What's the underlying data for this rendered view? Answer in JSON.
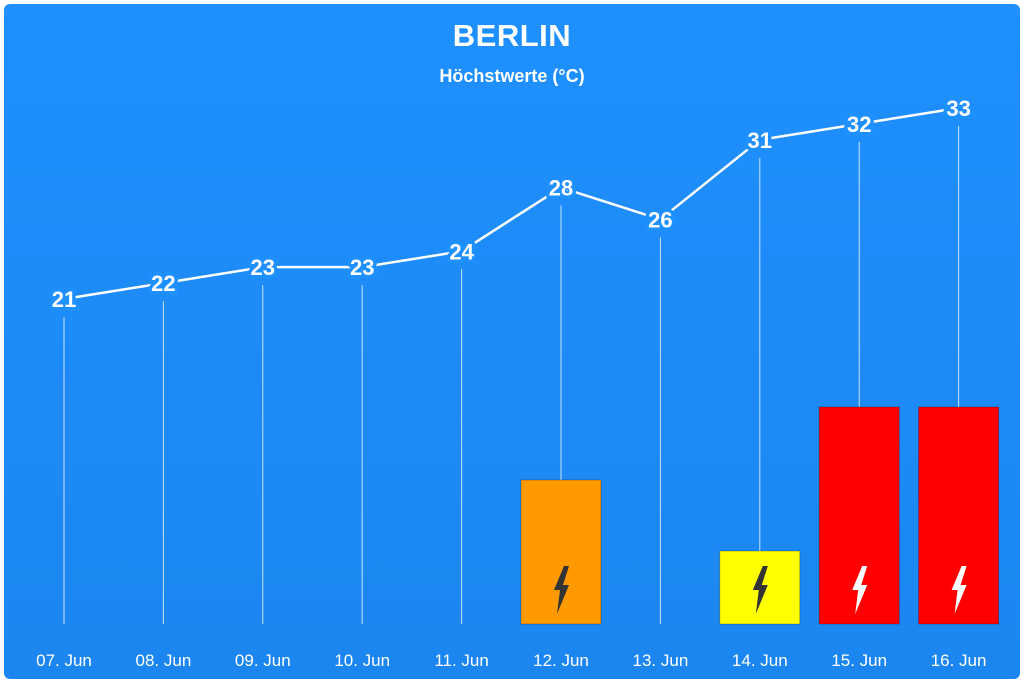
{
  "chart_data": {
    "type": "line",
    "title": "BERLIN",
    "subtitle": "Höchstwerte (°C)",
    "categories": [
      "07. Jun",
      "08. Jun",
      "09. Jun",
      "10. Jun",
      "11. Jun",
      "12. Jun",
      "13. Jun",
      "14. Jun",
      "15. Jun",
      "16. Jun"
    ],
    "values": [
      21,
      22,
      23,
      23,
      24,
      28,
      26,
      31,
      32,
      33
    ],
    "line_color": "#ffffff",
    "warnings": [
      {
        "category": "12. Jun",
        "level": 2,
        "color": "#ff9900",
        "icon": "lightning-bolt-icon"
      },
      {
        "category": "14. Jun",
        "level": 1,
        "color": "#ffff00",
        "icon": "lightning-bolt-icon"
      },
      {
        "category": "15. Jun",
        "level": 3,
        "color": "#ff0000",
        "icon": "lightning-bolt-icon"
      },
      {
        "category": "16. Jun",
        "level": 3,
        "color": "#ff0000",
        "icon": "lightning-bolt-icon"
      }
    ],
    "grid": false,
    "legend": "none"
  },
  "colors": {
    "background": "#1e90ff",
    "background_dark": "#1c86f0"
  }
}
